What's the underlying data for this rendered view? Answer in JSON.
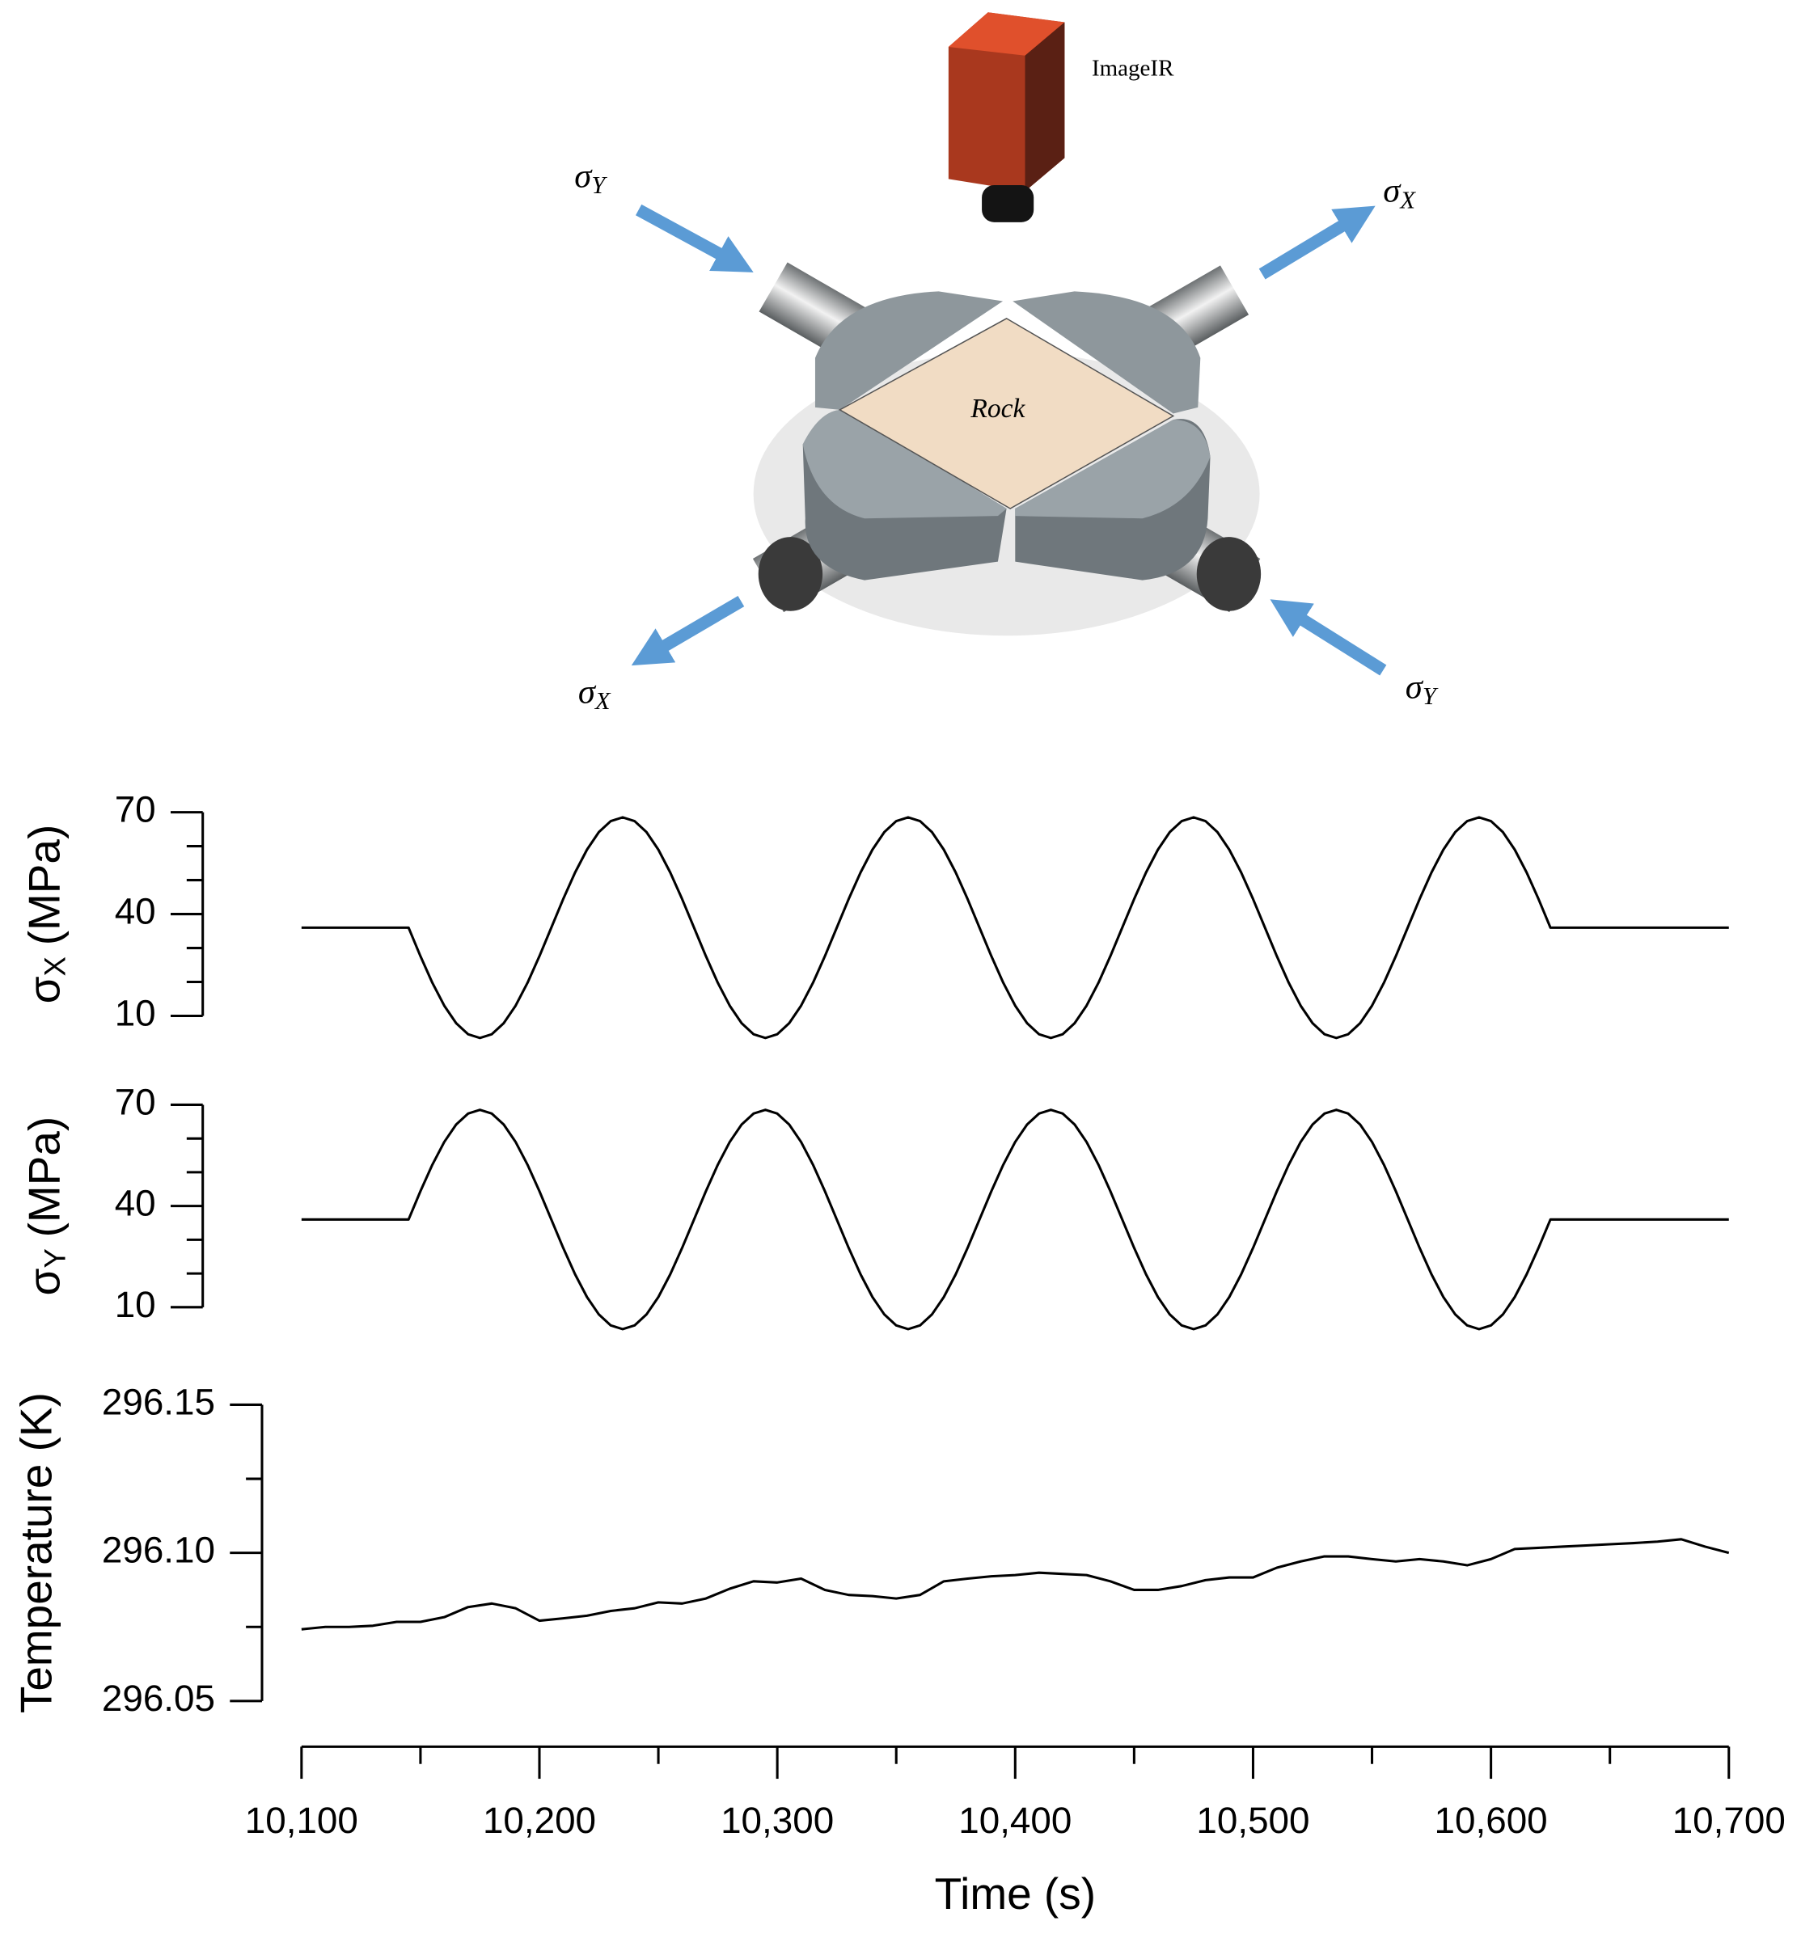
{
  "diagram": {
    "camera_label": "ImageIR",
    "rock_label": "Rock",
    "stress_labels": [
      {
        "symbol": "σ",
        "subscript": "Y"
      },
      {
        "symbol": "σ",
        "subscript": "X"
      },
      {
        "symbol": "σ",
        "subscript": "X"
      },
      {
        "symbol": "σ",
        "subscript": "Y"
      }
    ]
  },
  "chart_data": [
    {
      "type": "line",
      "ylabel": [
        "σ",
        "X",
        "(MPa)"
      ],
      "color": "#000000",
      "xlim": [
        10100,
        10700
      ],
      "ylim": [
        10,
        70
      ],
      "yticks": [
        10,
        40,
        70
      ],
      "minor_yticks": [
        20,
        30,
        50,
        60
      ],
      "x": [
        10100,
        10145,
        10150,
        10155,
        10160,
        10165,
        10170,
        10175,
        10180,
        10185,
        10190,
        10195,
        10200,
        10205,
        10210,
        10215,
        10220,
        10225,
        10230,
        10235,
        10240,
        10245,
        10250,
        10255,
        10260,
        10265,
        10270,
        10275,
        10280,
        10285,
        10290,
        10295,
        10300,
        10305,
        10310,
        10315,
        10320,
        10325,
        10330,
        10335,
        10340,
        10345,
        10350,
        10355,
        10360,
        10365,
        10370,
        10375,
        10380,
        10385,
        10390,
        10395,
        10400,
        10405,
        10410,
        10415,
        10420,
        10425,
        10430,
        10435,
        10440,
        10445,
        10450,
        10455,
        10460,
        10465,
        10470,
        10475,
        10480,
        10485,
        10490,
        10495,
        10500,
        10505,
        10510,
        10515,
        10520,
        10525,
        10530,
        10535,
        10540,
        10545,
        10550,
        10555,
        10560,
        10565,
        10570,
        10575,
        10580,
        10585,
        10590,
        10595,
        10600,
        10605,
        10610,
        10615,
        10620,
        10625,
        10700
      ],
      "values": [
        36,
        36,
        27.59,
        19.75,
        13.02,
        7.85,
        4.61,
        3.5,
        4.61,
        7.85,
        13.02,
        19.75,
        27.59,
        36,
        44.41,
        52.25,
        58.98,
        64.15,
        67.39,
        68.5,
        67.39,
        64.15,
        58.98,
        52.25,
        44.41,
        36,
        27.59,
        19.75,
        13.02,
        7.85,
        4.61,
        3.5,
        4.61,
        7.85,
        13.02,
        19.75,
        27.59,
        36,
        44.41,
        52.25,
        58.98,
        64.15,
        67.39,
        68.5,
        67.39,
        64.15,
        58.98,
        52.25,
        44.41,
        36,
        27.59,
        19.75,
        13.02,
        7.85,
        4.61,
        3.5,
        4.61,
        7.85,
        13.02,
        19.75,
        27.59,
        36,
        44.41,
        52.25,
        58.98,
        64.15,
        67.39,
        68.5,
        67.39,
        64.15,
        58.98,
        52.25,
        44.41,
        36,
        27.59,
        19.75,
        13.02,
        7.85,
        4.61,
        3.5,
        4.61,
        7.85,
        13.02,
        19.75,
        27.59,
        36,
        44.41,
        52.25,
        58.98,
        64.15,
        67.39,
        68.5,
        67.39,
        64.15,
        58.98,
        52.25,
        44.41,
        36,
        36
      ]
    },
    {
      "type": "line",
      "ylabel": [
        "σ",
        "Y",
        "(MPa)"
      ],
      "color": "#000000",
      "xlim": [
        10100,
        10700
      ],
      "ylim": [
        10,
        70
      ],
      "yticks": [
        10,
        40,
        70
      ],
      "minor_yticks": [
        20,
        30,
        50,
        60
      ],
      "x": [
        10100,
        10145,
        10150,
        10155,
        10160,
        10165,
        10170,
        10175,
        10180,
        10185,
        10190,
        10195,
        10200,
        10205,
        10210,
        10215,
        10220,
        10225,
        10230,
        10235,
        10240,
        10245,
        10250,
        10255,
        10260,
        10265,
        10270,
        10275,
        10280,
        10285,
        10290,
        10295,
        10300,
        10305,
        10310,
        10315,
        10320,
        10325,
        10330,
        10335,
        10340,
        10345,
        10350,
        10355,
        10360,
        10365,
        10370,
        10375,
        10380,
        10385,
        10390,
        10395,
        10400,
        10405,
        10410,
        10415,
        10420,
        10425,
        10430,
        10435,
        10440,
        10445,
        10450,
        10455,
        10460,
        10465,
        10470,
        10475,
        10480,
        10485,
        10490,
        10495,
        10500,
        10505,
        10510,
        10515,
        10520,
        10525,
        10530,
        10535,
        10540,
        10545,
        10550,
        10555,
        10560,
        10565,
        10570,
        10575,
        10580,
        10585,
        10590,
        10595,
        10600,
        10605,
        10610,
        10615,
        10620,
        10625,
        10700
      ],
      "values": [
        36,
        36,
        44.41,
        52.25,
        58.98,
        64.15,
        67.39,
        68.5,
        67.39,
        64.15,
        58.98,
        52.25,
        44.41,
        36,
        27.59,
        19.75,
        13.02,
        7.85,
        4.61,
        3.5,
        4.61,
        7.85,
        13.02,
        19.75,
        27.59,
        36,
        44.41,
        52.25,
        58.98,
        64.15,
        67.39,
        68.5,
        67.39,
        64.15,
        58.98,
        52.25,
        44.41,
        36,
        27.59,
        19.75,
        13.02,
        7.85,
        4.61,
        3.5,
        4.61,
        7.85,
        13.02,
        19.75,
        27.59,
        36,
        44.41,
        52.25,
        58.98,
        64.15,
        67.39,
        68.5,
        67.39,
        64.15,
        58.98,
        52.25,
        44.41,
        36,
        27.59,
        19.75,
        13.02,
        7.85,
        4.61,
        3.5,
        4.61,
        7.85,
        13.02,
        19.75,
        27.59,
        36,
        44.41,
        52.25,
        58.98,
        64.15,
        67.39,
        68.5,
        67.39,
        64.15,
        58.98,
        52.25,
        44.41,
        36,
        27.59,
        19.75,
        13.02,
        7.85,
        4.61,
        3.5,
        4.61,
        7.85,
        13.02,
        19.75,
        27.59,
        36,
        36
      ]
    },
    {
      "type": "line",
      "ylabel": "Temperature (K)",
      "xlabel": "Time (s)",
      "color": "#000000",
      "xlim": [
        10100,
        10700
      ],
      "xticks": [
        {
          "value": 10100,
          "label": "10,100"
        },
        {
          "value": 10200,
          "label": "10,200"
        },
        {
          "value": 10300,
          "label": "10,300"
        },
        {
          "value": 10400,
          "label": "10,400"
        },
        {
          "value": 10500,
          "label": "10,500"
        },
        {
          "value": 10600,
          "label": "10,600"
        },
        {
          "value": 10700,
          "label": "10,700"
        }
      ],
      "minor_xticks": [
        10150,
        10250,
        10350,
        10450,
        10550,
        10650
      ],
      "ylim": [
        296.05,
        296.15
      ],
      "yticks": [
        296.05,
        {
          "value": 296.1,
          "label": "296.10"
        },
        296.15
      ],
      "minor_yticks": [
        296.075,
        296.125
      ],
      "x": [
        10100,
        10110,
        10120,
        10130,
        10140,
        10150,
        10160,
        10170,
        10180,
        10190,
        10200,
        10210,
        10220,
        10230,
        10240,
        10250,
        10260,
        10270,
        10280,
        10290,
        10300,
        10310,
        10320,
        10330,
        10340,
        10350,
        10360,
        10370,
        10380,
        10390,
        10400,
        10410,
        10420,
        10430,
        10440,
        10450,
        10460,
        10470,
        10480,
        10490,
        10500,
        10510,
        10520,
        10530,
        10540,
        10550,
        10560,
        10570,
        10580,
        10590,
        10600,
        10610,
        10620,
        10630,
        10640,
        10650,
        10660,
        10670,
        10680,
        10690,
        10700
      ],
      "values": [
        296.0742,
        296.075,
        296.075,
        296.0754,
        296.0767,
        296.0767,
        296.0783,
        296.0817,
        296.0829,
        296.0813,
        296.0771,
        296.0779,
        296.0788,
        296.0804,
        296.0813,
        296.0833,
        296.0829,
        296.0846,
        296.0879,
        296.0904,
        296.09,
        296.0913,
        296.0875,
        296.0858,
        296.0854,
        296.0846,
        296.0858,
        296.0904,
        296.0913,
        296.0921,
        296.0925,
        296.0933,
        296.0929,
        296.0925,
        296.0904,
        296.0875,
        296.0875,
        296.0888,
        296.0908,
        296.0917,
        296.0917,
        296.095,
        296.0971,
        296.0988,
        296.0988,
        296.0979,
        296.0971,
        296.0979,
        296.0971,
        296.0958,
        296.0979,
        296.1013,
        296.1017,
        296.1021,
        296.1025,
        296.1029,
        296.1033,
        296.1038,
        296.1046,
        296.1021,
        296.1
      ]
    }
  ]
}
